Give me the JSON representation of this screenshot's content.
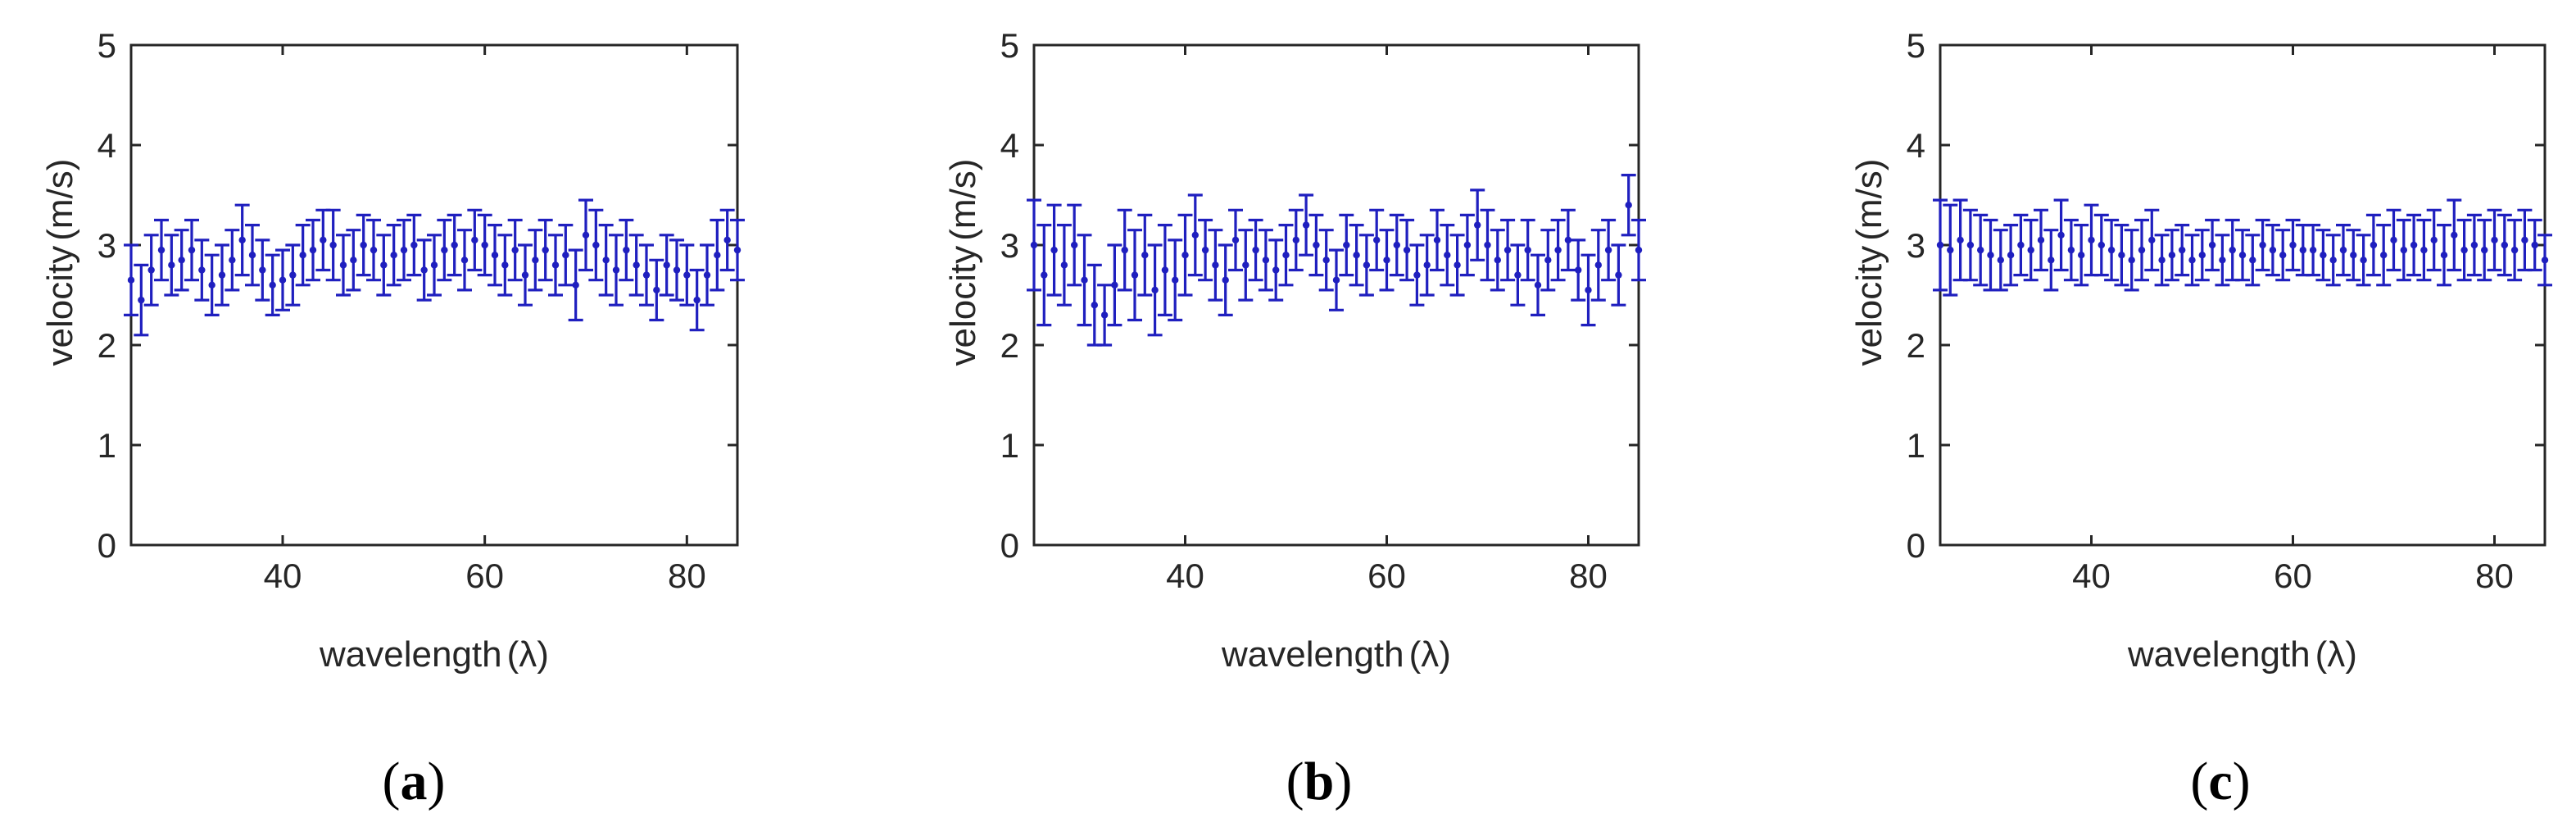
{
  "colors": {
    "series": "#1f1fbf",
    "axis": "#262626",
    "background": "#ffffff"
  },
  "chart_data": [
    {
      "type": "scatter",
      "panel_label": "a",
      "xlabel": "wavelength",
      "xlabel_symbol": "(λ)",
      "ylabel": "velocity",
      "ylabel_unit": "(m/s)",
      "xlim": [
        25,
        85
      ],
      "ylim": [
        0,
        5
      ],
      "xticks": [
        40,
        60,
        80
      ],
      "yticks": [
        0,
        1,
        2,
        3,
        4,
        5
      ],
      "series": [
        {
          "name": "velocity",
          "x": [
            25,
            26,
            27,
            28,
            29,
            30,
            31,
            32,
            33,
            34,
            35,
            36,
            37,
            38,
            39,
            40,
            41,
            42,
            43,
            44,
            45,
            46,
            47,
            48,
            49,
            50,
            51,
            52,
            53,
            54,
            55,
            56,
            57,
            58,
            59,
            60,
            61,
            62,
            63,
            64,
            65,
            66,
            67,
            68,
            69,
            70,
            71,
            72,
            73,
            74,
            75,
            76,
            77,
            78,
            79,
            80,
            81,
            82,
            83,
            84,
            85
          ],
          "y": [
            2.65,
            2.45,
            2.75,
            2.95,
            2.8,
            2.85,
            2.95,
            2.75,
            2.6,
            2.7,
            2.85,
            3.05,
            2.9,
            2.75,
            2.6,
            2.65,
            2.7,
            2.9,
            2.95,
            3.05,
            3.0,
            2.8,
            2.85,
            3.0,
            2.95,
            2.8,
            2.9,
            2.95,
            3.0,
            2.75,
            2.8,
            2.95,
            3.0,
            2.85,
            3.05,
            3.0,
            2.9,
            2.8,
            2.95,
            2.7,
            2.85,
            2.95,
            2.8,
            2.9,
            2.6,
            3.1,
            3.0,
            2.85,
            2.75,
            2.95,
            2.8,
            2.7,
            2.55,
            2.8,
            2.75,
            2.7,
            2.45,
            2.7,
            2.9,
            3.05,
            2.95
          ],
          "err": [
            0.35,
            0.35,
            0.35,
            0.3,
            0.3,
            0.3,
            0.3,
            0.3,
            0.3,
            0.3,
            0.3,
            0.35,
            0.3,
            0.3,
            0.3,
            0.3,
            0.3,
            0.3,
            0.3,
            0.3,
            0.35,
            0.3,
            0.3,
            0.3,
            0.3,
            0.3,
            0.3,
            0.3,
            0.3,
            0.3,
            0.3,
            0.3,
            0.3,
            0.3,
            0.3,
            0.3,
            0.3,
            0.3,
            0.3,
            0.3,
            0.3,
            0.3,
            0.3,
            0.3,
            0.35,
            0.35,
            0.35,
            0.35,
            0.35,
            0.3,
            0.3,
            0.3,
            0.3,
            0.3,
            0.3,
            0.3,
            0.3,
            0.3,
            0.35,
            0.3,
            0.3
          ]
        }
      ]
    },
    {
      "type": "scatter",
      "panel_label": "b",
      "xlabel": "wavelength",
      "xlabel_symbol": "(λ)",
      "ylabel": "velocity",
      "ylabel_unit": "(m/s)",
      "xlim": [
        25,
        85
      ],
      "ylim": [
        0,
        5
      ],
      "xticks": [
        40,
        60,
        80
      ],
      "yticks": [
        0,
        1,
        2,
        3,
        4,
        5
      ],
      "series": [
        {
          "name": "velocity",
          "x": [
            25,
            26,
            27,
            28,
            29,
            30,
            31,
            32,
            33,
            34,
            35,
            36,
            37,
            38,
            39,
            40,
            41,
            42,
            43,
            44,
            45,
            46,
            47,
            48,
            49,
            50,
            51,
            52,
            53,
            54,
            55,
            56,
            57,
            58,
            59,
            60,
            61,
            62,
            63,
            64,
            65,
            66,
            67,
            68,
            69,
            70,
            71,
            72,
            73,
            74,
            75,
            76,
            77,
            78,
            79,
            80,
            81,
            82,
            83,
            84,
            85
          ],
          "y": [
            3.0,
            2.7,
            2.95,
            2.8,
            3.0,
            2.65,
            2.4,
            2.3,
            2.6,
            2.95,
            2.7,
            2.9,
            2.55,
            2.75,
            2.65,
            2.9,
            3.1,
            2.95,
            2.8,
            2.65,
            3.05,
            2.8,
            2.95,
            2.85,
            2.75,
            2.9,
            3.05,
            3.2,
            3.0,
            2.85,
            2.65,
            3.0,
            2.9,
            2.8,
            3.05,
            2.85,
            3.0,
            2.95,
            2.7,
            2.8,
            3.05,
            2.9,
            2.8,
            3.0,
            3.2,
            3.0,
            2.85,
            2.95,
            2.7,
            2.95,
            2.6,
            2.85,
            2.95,
            3.05,
            2.75,
            2.55,
            2.8,
            2.95,
            2.7,
            3.4,
            2.95
          ],
          "err": [
            0.45,
            0.5,
            0.45,
            0.4,
            0.4,
            0.45,
            0.4,
            0.3,
            0.4,
            0.4,
            0.45,
            0.4,
            0.45,
            0.45,
            0.4,
            0.4,
            0.4,
            0.3,
            0.35,
            0.35,
            0.3,
            0.35,
            0.3,
            0.3,
            0.3,
            0.3,
            0.3,
            0.3,
            0.3,
            0.3,
            0.3,
            0.3,
            0.3,
            0.3,
            0.3,
            0.3,
            0.3,
            0.3,
            0.3,
            0.3,
            0.3,
            0.3,
            0.3,
            0.3,
            0.35,
            0.35,
            0.3,
            0.3,
            0.3,
            0.3,
            0.3,
            0.3,
            0.3,
            0.3,
            0.3,
            0.35,
            0.35,
            0.3,
            0.3,
            0.3,
            0.3
          ]
        }
      ]
    },
    {
      "type": "scatter",
      "panel_label": "c",
      "xlabel": "wavelength",
      "xlabel_symbol": "(λ)",
      "ylabel": "velocity",
      "ylabel_unit": "(m/s)",
      "xlim": [
        25,
        85
      ],
      "ylim": [
        0,
        5
      ],
      "xticks": [
        40,
        60,
        80
      ],
      "yticks": [
        0,
        1,
        2,
        3,
        4,
        5
      ],
      "series": [
        {
          "name": "velocity",
          "x": [
            25,
            26,
            27,
            28,
            29,
            30,
            31,
            32,
            33,
            34,
            35,
            36,
            37,
            38,
            39,
            40,
            41,
            42,
            43,
            44,
            45,
            46,
            47,
            48,
            49,
            50,
            51,
            52,
            53,
            54,
            55,
            56,
            57,
            58,
            59,
            60,
            61,
            62,
            63,
            64,
            65,
            66,
            67,
            68,
            69,
            70,
            71,
            72,
            73,
            74,
            75,
            76,
            77,
            78,
            79,
            80,
            81,
            82,
            83,
            84,
            85
          ],
          "y": [
            3.0,
            2.95,
            3.05,
            3.0,
            2.95,
            2.9,
            2.85,
            2.9,
            3.0,
            2.95,
            3.05,
            2.85,
            3.1,
            2.95,
            2.9,
            3.05,
            3.0,
            2.95,
            2.9,
            2.85,
            2.95,
            3.05,
            2.85,
            2.9,
            2.95,
            2.85,
            2.9,
            3.0,
            2.85,
            2.95,
            2.9,
            2.85,
            3.0,
            2.95,
            2.9,
            3.0,
            2.95,
            2.95,
            2.9,
            2.85,
            2.95,
            2.9,
            2.85,
            3.0,
            2.9,
            3.05,
            2.95,
            3.0,
            2.95,
            3.05,
            2.9,
            3.1,
            2.95,
            3.0,
            2.95,
            3.05,
            3.0,
            2.95,
            3.05,
            3.0,
            2.85
          ],
          "err": [
            0.45,
            0.45,
            0.4,
            0.35,
            0.35,
            0.35,
            0.3,
            0.3,
            0.3,
            0.3,
            0.3,
            0.3,
            0.35,
            0.3,
            0.3,
            0.35,
            0.3,
            0.3,
            0.3,
            0.3,
            0.3,
            0.3,
            0.25,
            0.25,
            0.25,
            0.25,
            0.25,
            0.25,
            0.25,
            0.3,
            0.25,
            0.25,
            0.25,
            0.25,
            0.25,
            0.25,
            0.25,
            0.25,
            0.25,
            0.25,
            0.25,
            0.25,
            0.25,
            0.3,
            0.3,
            0.3,
            0.3,
            0.3,
            0.3,
            0.3,
            0.3,
            0.35,
            0.3,
            0.3,
            0.3,
            0.3,
            0.3,
            0.3,
            0.3,
            0.25,
            0.25
          ]
        }
      ]
    }
  ]
}
